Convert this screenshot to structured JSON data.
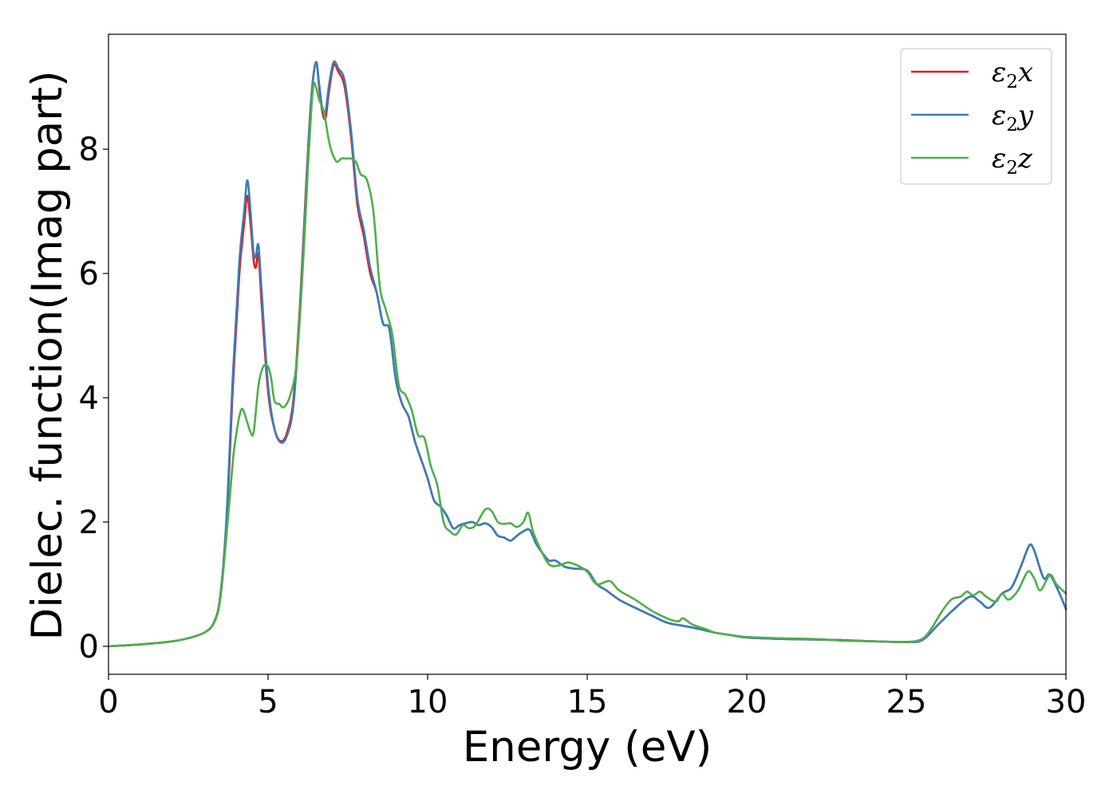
{
  "chart_data": {
    "type": "line",
    "title": "",
    "xlabel": "Energy (eV)",
    "ylabel": "Dielec. function(Imag part)",
    "xlim": [
      0,
      30
    ],
    "ylim": [
      -0.45,
      9.85
    ],
    "xticks": [
      0,
      5,
      10,
      15,
      20,
      25,
      30
    ],
    "yticks": [
      0,
      2,
      4,
      6,
      8
    ],
    "grid": false,
    "legend_position": "top-right",
    "series": [
      {
        "name": "ε2x",
        "legend": {
          "base": "ε",
          "sub": "2",
          "var": "x"
        },
        "color": "#e41a1c",
        "x": [
          0,
          1,
          2,
          2.5,
          3,
          3.3,
          3.5,
          3.7,
          3.9,
          4.1,
          4.25,
          4.35,
          4.45,
          4.55,
          4.62,
          4.7,
          4.8,
          5.0,
          5.2,
          5.4,
          5.6,
          5.8,
          6.0,
          6.2,
          6.35,
          6.5,
          6.6,
          6.7,
          6.8,
          6.9,
          7.05,
          7.2,
          7.4,
          7.6,
          7.8,
          8.0,
          8.2,
          8.4,
          8.6,
          8.8,
          9.0,
          9.2,
          9.4,
          9.6,
          9.8,
          10.0,
          10.2,
          10.4,
          10.6,
          10.8,
          11.0,
          11.2,
          11.4,
          11.6,
          11.8,
          12.0,
          12.2,
          12.4,
          12.6,
          12.8,
          13.0,
          13.2,
          13.4,
          13.6,
          13.8,
          14.0,
          14.3,
          14.6,
          15.0,
          15.3,
          15.6,
          16.0,
          16.5,
          17.0,
          17.5,
          18.0,
          18.5,
          19.0,
          19.5,
          20.0,
          21.0,
          22.0,
          23.0,
          24.0,
          25.0,
          25.5,
          26.0,
          26.5,
          27.0,
          27.3,
          27.6,
          28.0,
          28.3,
          28.6,
          28.85,
          29.0,
          29.3,
          29.5,
          29.8,
          30.0
        ],
        "y": [
          0,
          0.03,
          0.08,
          0.13,
          0.22,
          0.38,
          0.8,
          2.0,
          4.2,
          6.0,
          6.8,
          7.25,
          6.8,
          6.2,
          6.1,
          6.3,
          5.5,
          4.1,
          3.5,
          3.3,
          3.45,
          4.0,
          5.5,
          7.5,
          8.8,
          9.4,
          9.0,
          8.6,
          8.5,
          8.9,
          9.35,
          9.25,
          9.0,
          8.2,
          7.1,
          6.6,
          6.0,
          5.7,
          5.2,
          5.1,
          4.3,
          3.9,
          3.7,
          3.3,
          3.0,
          2.7,
          2.35,
          2.25,
          2.1,
          1.9,
          1.95,
          1.98,
          2.0,
          1.95,
          1.98,
          1.92,
          1.78,
          1.75,
          1.7,
          1.78,
          1.85,
          1.87,
          1.65,
          1.5,
          1.38,
          1.38,
          1.28,
          1.25,
          1.22,
          1.0,
          0.9,
          0.75,
          0.62,
          0.5,
          0.38,
          0.33,
          0.28,
          0.22,
          0.18,
          0.14,
          0.12,
          0.11,
          0.1,
          0.08,
          0.07,
          0.1,
          0.35,
          0.6,
          0.8,
          0.72,
          0.62,
          0.85,
          0.95,
          1.3,
          1.62,
          1.55,
          1.1,
          1.15,
          0.85,
          0.6
        ]
      },
      {
        "name": "ε2y",
        "legend": {
          "base": "ε",
          "sub": "2",
          "var": "y"
        },
        "color": "#377eb8",
        "x": [
          0,
          1,
          2,
          2.5,
          3,
          3.3,
          3.5,
          3.7,
          3.9,
          4.1,
          4.25,
          4.35,
          4.45,
          4.55,
          4.62,
          4.7,
          4.8,
          5.0,
          5.2,
          5.4,
          5.6,
          5.8,
          6.0,
          6.2,
          6.35,
          6.5,
          6.6,
          6.7,
          6.8,
          6.9,
          7.05,
          7.2,
          7.4,
          7.6,
          7.8,
          8.0,
          8.2,
          8.4,
          8.6,
          8.8,
          9.0,
          9.2,
          9.4,
          9.6,
          9.8,
          10.0,
          10.2,
          10.4,
          10.6,
          10.8,
          11.0,
          11.2,
          11.4,
          11.6,
          11.8,
          12.0,
          12.2,
          12.4,
          12.6,
          12.8,
          13.0,
          13.2,
          13.4,
          13.6,
          13.8,
          14.0,
          14.3,
          14.6,
          15.0,
          15.3,
          15.6,
          16.0,
          16.5,
          17.0,
          17.5,
          18.0,
          18.5,
          19.0,
          19.5,
          20.0,
          21.0,
          22.0,
          23.0,
          24.0,
          25.0,
          25.5,
          26.0,
          26.5,
          27.0,
          27.3,
          27.6,
          28.0,
          28.3,
          28.6,
          28.85,
          29.0,
          29.3,
          29.5,
          29.8,
          30.0
        ],
        "y": [
          0,
          0.03,
          0.08,
          0.13,
          0.22,
          0.38,
          0.8,
          2.1,
          4.4,
          6.2,
          7.0,
          7.5,
          7.0,
          6.3,
          6.3,
          6.45,
          5.7,
          4.2,
          3.5,
          3.28,
          3.4,
          3.9,
          5.4,
          7.4,
          8.8,
          9.4,
          9.05,
          8.65,
          8.6,
          9.0,
          9.4,
          9.3,
          9.1,
          8.3,
          7.2,
          6.7,
          6.1,
          5.7,
          5.2,
          5.1,
          4.3,
          3.9,
          3.7,
          3.3,
          3.0,
          2.7,
          2.35,
          2.25,
          2.1,
          1.9,
          1.95,
          1.98,
          2.0,
          1.95,
          1.98,
          1.92,
          1.78,
          1.75,
          1.7,
          1.78,
          1.85,
          1.87,
          1.65,
          1.5,
          1.38,
          1.38,
          1.28,
          1.25,
          1.22,
          1.0,
          0.9,
          0.75,
          0.62,
          0.5,
          0.38,
          0.33,
          0.28,
          0.22,
          0.18,
          0.14,
          0.12,
          0.11,
          0.1,
          0.08,
          0.07,
          0.1,
          0.35,
          0.6,
          0.8,
          0.72,
          0.62,
          0.85,
          0.95,
          1.3,
          1.62,
          1.55,
          1.1,
          1.15,
          0.85,
          0.6
        ]
      },
      {
        "name": "ε2z",
        "legend": {
          "base": "ε",
          "sub": "2",
          "var": "z"
        },
        "color": "#4daf4a",
        "x": [
          0,
          1,
          2,
          2.5,
          3,
          3.3,
          3.5,
          3.7,
          3.9,
          4.0,
          4.1,
          4.2,
          4.35,
          4.45,
          4.55,
          4.7,
          4.85,
          5.0,
          5.1,
          5.2,
          5.35,
          5.5,
          5.7,
          5.9,
          6.1,
          6.25,
          6.4,
          6.5,
          6.6,
          6.75,
          6.9,
          7.0,
          7.15,
          7.3,
          7.45,
          7.6,
          7.75,
          7.9,
          8.1,
          8.3,
          8.5,
          8.7,
          8.9,
          9.1,
          9.3,
          9.5,
          9.7,
          9.9,
          10.1,
          10.3,
          10.5,
          10.7,
          10.9,
          11.1,
          11.3,
          11.5,
          11.8,
          12.0,
          12.2,
          12.4,
          12.6,
          12.8,
          13.0,
          13.15,
          13.3,
          13.5,
          13.8,
          14.1,
          14.4,
          14.7,
          15.0,
          15.3,
          15.7,
          16.0,
          16.5,
          17.0,
          17.5,
          17.85,
          18.0,
          18.3,
          18.7,
          19.0,
          19.5,
          20.0,
          21.0,
          22.0,
          22.7,
          23.0,
          24.0,
          25.0,
          25.5,
          25.8,
          26.1,
          26.4,
          26.7,
          26.9,
          27.1,
          27.3,
          27.5,
          27.8,
          28.0,
          28.2,
          28.5,
          28.8,
          29.0,
          29.2,
          29.5,
          29.7,
          30.0
        ],
        "y": [
          0,
          0.03,
          0.08,
          0.13,
          0.22,
          0.37,
          0.75,
          1.8,
          3.0,
          3.4,
          3.7,
          3.82,
          3.6,
          3.45,
          3.45,
          4.2,
          4.5,
          4.5,
          4.3,
          3.95,
          3.9,
          3.85,
          4.05,
          4.6,
          6.2,
          7.7,
          8.95,
          9.0,
          8.8,
          8.6,
          8.15,
          7.95,
          7.8,
          7.85,
          7.85,
          7.85,
          7.8,
          7.6,
          7.5,
          7.0,
          5.8,
          5.4,
          5.0,
          4.2,
          4.05,
          3.8,
          3.4,
          3.35,
          2.9,
          2.6,
          2.0,
          1.85,
          1.8,
          1.95,
          1.9,
          1.95,
          2.2,
          2.18,
          2.0,
          1.97,
          1.98,
          1.92,
          2.0,
          2.15,
          1.85,
          1.6,
          1.32,
          1.3,
          1.35,
          1.3,
          1.2,
          1.0,
          1.05,
          0.9,
          0.75,
          0.58,
          0.45,
          0.4,
          0.45,
          0.35,
          0.28,
          0.22,
          0.18,
          0.15,
          0.13,
          0.12,
          0.1,
          0.09,
          0.08,
          0.07,
          0.12,
          0.3,
          0.55,
          0.75,
          0.8,
          0.88,
          0.82,
          0.88,
          0.8,
          0.72,
          0.85,
          0.75,
          0.9,
          1.2,
          1.1,
          0.9,
          1.15,
          1.0,
          0.85
        ]
      }
    ]
  }
}
